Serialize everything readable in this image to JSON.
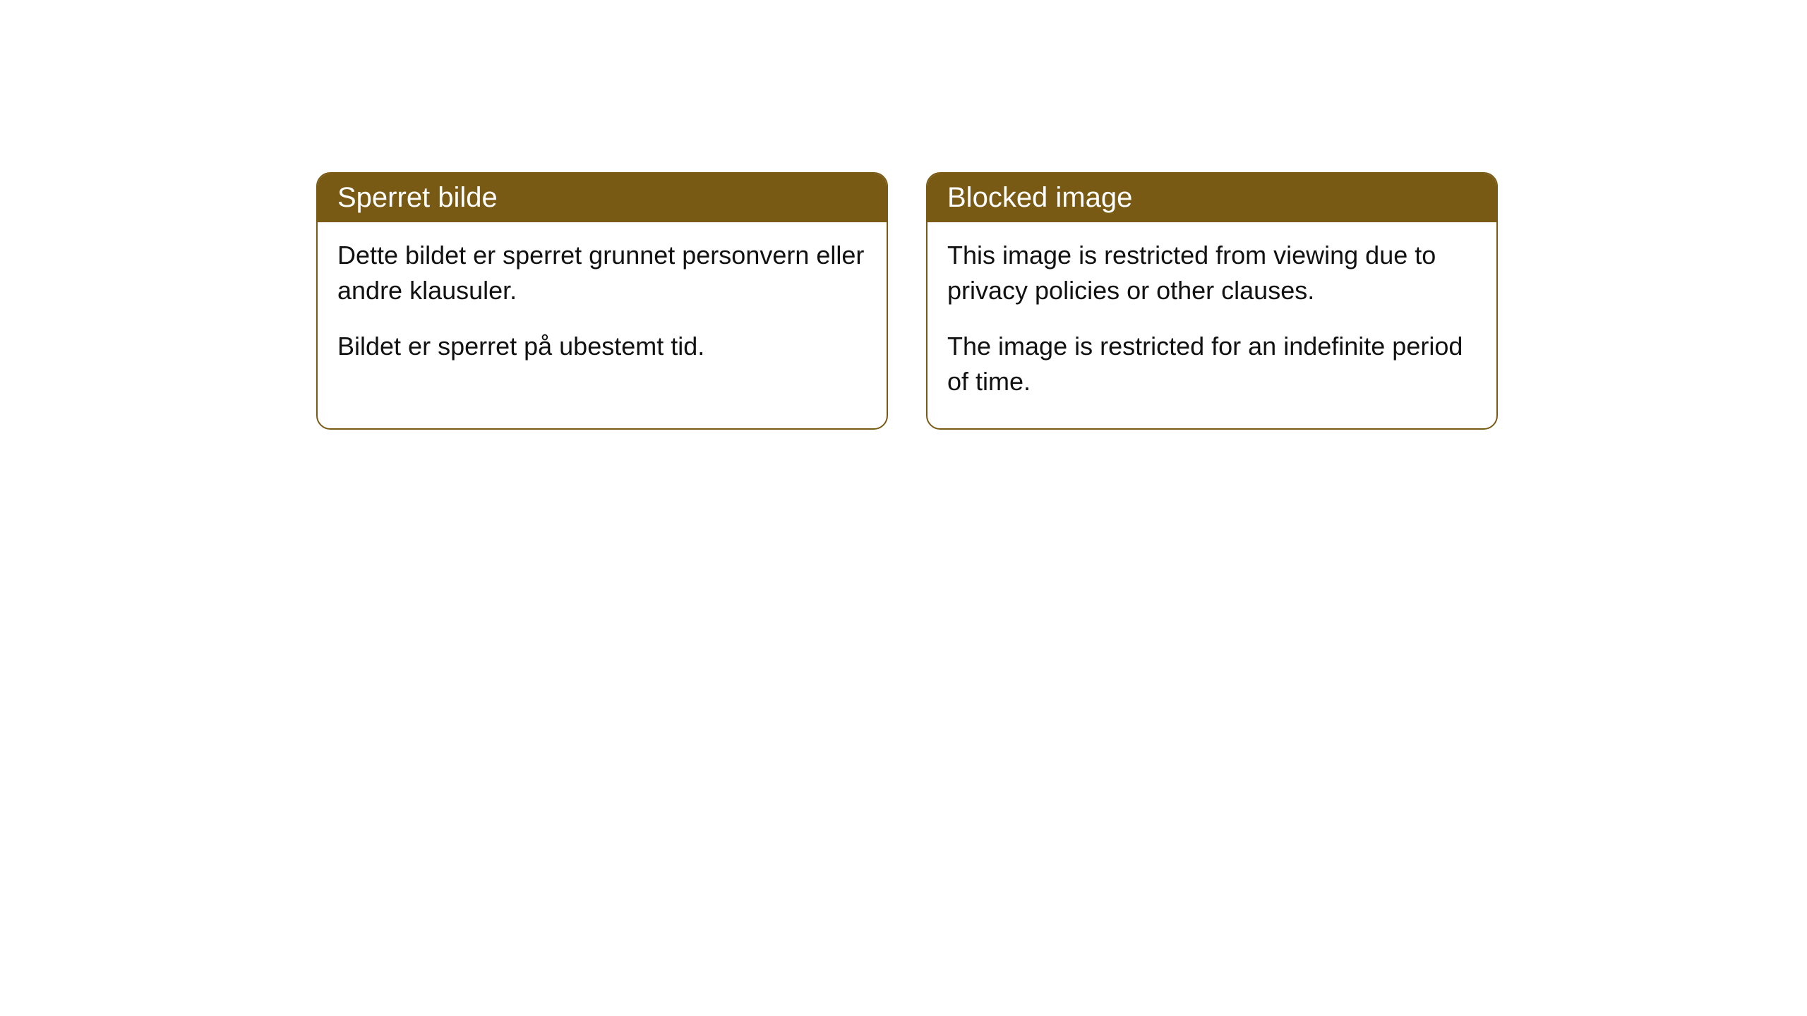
{
  "cards": [
    {
      "title": "Sperret bilde",
      "paragraph1": "Dette bildet er sperret grunnet personvern eller andre klausuler.",
      "paragraph2": "Bildet er sperret på ubestemt tid."
    },
    {
      "title": "Blocked image",
      "paragraph1": "This image is restricted from viewing due to privacy policies or other clauses.",
      "paragraph2": "The image is restricted for an indefinite period of time."
    }
  ],
  "styling": {
    "header_background": "#785a14",
    "header_text_color": "#ffffff",
    "border_color": "#785a14",
    "body_background": "#ffffff",
    "body_text_color": "#111111",
    "border_radius": 20,
    "header_fontsize": 40,
    "body_fontsize": 36
  }
}
